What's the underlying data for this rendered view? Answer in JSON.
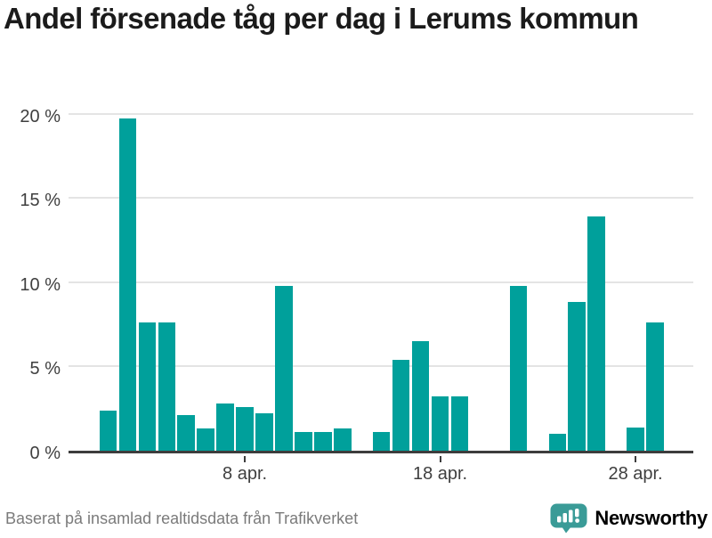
{
  "title": "Andel försenade tåg per dag i Lerums kommun",
  "footer": {
    "source": "Baserat på insamlad realtidsdata från Trafikverket",
    "brand": "Newsworthy"
  },
  "colors": {
    "bar": "#00a09b",
    "gridline": "#e4e4e4",
    "axis": "#3d3d3d",
    "title_text": "#1b1b1b",
    "tick_text": "#3f3f3f",
    "source_text": "#7b7b7b",
    "brand_teal": "#3a9b97"
  },
  "icons": {
    "brand_logo": "newsworthy-speech-bubble-bar-chart-icon"
  },
  "chart_data": {
    "type": "bar",
    "title": "Andel försenade tåg per dag i Lerums kommun",
    "unit": "%",
    "month": "apr.",
    "categories": [
      1,
      2,
      3,
      4,
      5,
      6,
      7,
      8,
      9,
      10,
      11,
      12,
      13,
      14,
      15,
      16,
      17,
      18,
      19,
      20,
      21,
      22,
      23,
      24,
      25,
      26,
      27,
      28,
      29,
      30
    ],
    "values": [
      2.4,
      19.7,
      7.6,
      7.6,
      2.1,
      1.3,
      2.8,
      2.6,
      2.2,
      9.8,
      1.1,
      1.1,
      1.3,
      0,
      1.1,
      5.4,
      6.5,
      3.2,
      3.2,
      0,
      0,
      9.8,
      0,
      1.0,
      8.8,
      13.9,
      0,
      1.4,
      7.6,
      0
    ],
    "xlabel": "",
    "ylabel": "",
    "ylim": [
      0,
      20
    ],
    "grid": "horizontal",
    "legend": "none",
    "y_ticks": [
      {
        "value": 0,
        "label": "0 %"
      },
      {
        "value": 5,
        "label": "5 %"
      },
      {
        "value": 10,
        "label": "10 %"
      },
      {
        "value": 15,
        "label": "15 %"
      },
      {
        "value": 20,
        "label": "20 %"
      }
    ],
    "x_ticks": [
      {
        "day": 8,
        "label": "8 apr."
      },
      {
        "day": 18,
        "label": "18 apr."
      },
      {
        "day": 28,
        "label": "28 apr."
      }
    ]
  }
}
